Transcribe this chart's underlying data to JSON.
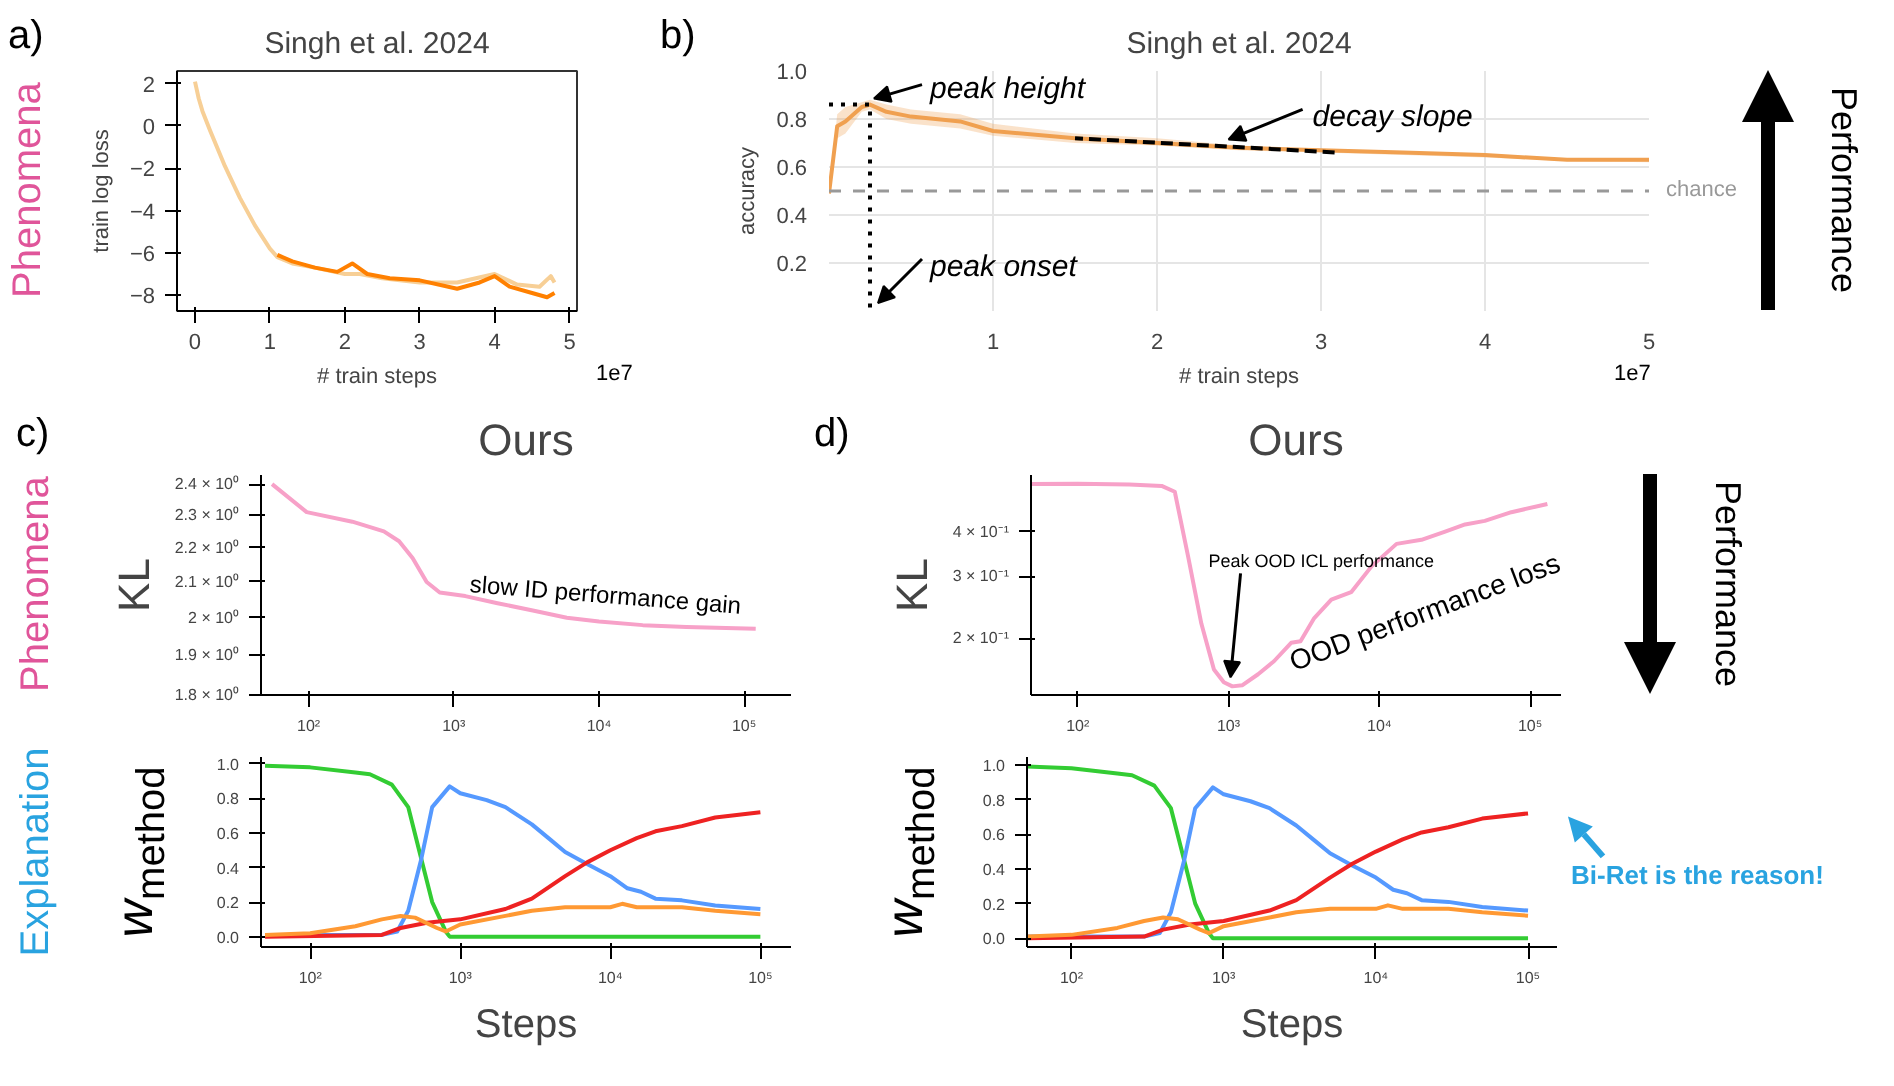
{
  "chart_data": [
    {
      "type": "line",
      "title": "Singh et al. 2024",
      "xlabel": "# train steps",
      "ylabel": "train log loss",
      "xlim": [
        -0.24,
        5.1
      ],
      "ylim": [
        -8.75,
        2.6
      ],
      "xticks": [
        0,
        1,
        2,
        3,
        4,
        5
      ],
      "yticks": [
        -8,
        -6,
        -4,
        -2,
        0,
        2
      ],
      "annotations": [
        "a)",
        "1e7",
        "Phenomena"
      ],
      "series": [
        {
          "color": "#f7cf96",
          "x": [
            0,
            0.05,
            0.1,
            0.2,
            0.4,
            0.6,
            0.8,
            1.0,
            1.1,
            1.3,
            1.6,
            2.0,
            2.2,
            2.5,
            3.0,
            3.5,
            4.0,
            4.3,
            4.6,
            4.75,
            4.8
          ],
          "values": [
            2.1,
            1.3,
            0.7,
            -0.2,
            -1.9,
            -3.4,
            -4.7,
            -5.8,
            -6.2,
            -6.5,
            -6.7,
            -7.0,
            -7.0,
            -7.2,
            -7.4,
            -7.4,
            -7.0,
            -7.5,
            -7.6,
            -7.1,
            -7.4
          ]
        },
        {
          "color": "#ff8000",
          "x": [
            1.1,
            1.3,
            1.6,
            1.9,
            2.1,
            2.3,
            2.6,
            3.0,
            3.5,
            3.8,
            4.0,
            4.2,
            4.5,
            4.7,
            4.8
          ],
          "values": [
            -6.1,
            -6.4,
            -6.7,
            -6.9,
            -6.5,
            -7.0,
            -7.2,
            -7.3,
            -7.7,
            -7.4,
            -7.1,
            -7.6,
            -7.9,
            -8.1,
            -7.9
          ]
        }
      ]
    },
    {
      "type": "line",
      "title": "Singh et al. 2024",
      "xlabel": "# train steps",
      "ylabel": "accuracy",
      "xlim": [
        0,
        5
      ],
      "ylim": [
        0,
        1.0
      ],
      "xticks": [
        1,
        2,
        3,
        4,
        5
      ],
      "yticks": [
        0.2,
        0.4,
        0.6,
        0.8,
        {
          "value": 1.0,
          "label": "1.0"
        }
      ],
      "grid": true,
      "ref_lines": [
        {
          "axis": "y",
          "value": 0.5,
          "label": "chance",
          "color": "#999999",
          "line_style": "dashed"
        }
      ],
      "annotations": [
        "b)",
        "1e7",
        {
          "text": "peak height",
          "x": 0.25,
          "y": 0.86
        },
        {
          "text": "peak onset",
          "x": 0.25,
          "y": 0
        },
        {
          "text": "decay slope",
          "x": 2.4,
          "y": 0.69
        },
        "Performance"
      ],
      "series": [
        {
          "color": "#f0a050",
          "x": [
            0,
            0.05,
            0.1,
            0.2,
            0.25,
            0.35,
            0.5,
            0.8,
            1.0,
            1.5,
            2.0,
            2.5,
            3.0,
            3.5,
            4.0,
            4.5,
            5.0
          ],
          "values": [
            0.49,
            0.77,
            0.79,
            0.85,
            0.86,
            0.83,
            0.81,
            0.79,
            0.75,
            0.72,
            0.7,
            0.68,
            0.67,
            0.66,
            0.65,
            0.63,
            0.63
          ],
          "lower": [
            0.49,
            0.72,
            0.74,
            0.83,
            0.84,
            0.8,
            0.78,
            0.76,
            0.73,
            0.7,
            0.69,
            0.67,
            0.66,
            0.65,
            0.64,
            0.625,
            0.62
          ],
          "upper": [
            0.49,
            0.82,
            0.85,
            0.87,
            0.88,
            0.86,
            0.84,
            0.82,
            0.78,
            0.74,
            0.72,
            0.69,
            0.67,
            0.66,
            0.65,
            0.635,
            0.63
          ]
        },
        {
          "color": "#000000",
          "line_style": "dotted",
          "x": [
            0,
            0.25,
            0.25
          ],
          "values": [
            0.86,
            0.86,
            0
          ]
        },
        {
          "color": "#000000",
          "line_style": "dashed",
          "x": [
            1.5,
            3.1
          ],
          "values": [
            0.72,
            0.66
          ]
        }
      ]
    },
    {
      "type": "line",
      "title": "Ours",
      "ylabel": "KL",
      "log": "xy",
      "xlim": [
        47,
        210000
      ],
      "ylim": [
        1.8,
        2.43
      ],
      "xticks": [
        {
          "value": 100,
          "label": "10²"
        },
        {
          "value": 1000,
          "label": "10³"
        },
        {
          "value": 10000,
          "label": "10⁴"
        },
        {
          "value": 100000,
          "label": "10⁵"
        }
      ],
      "yticks": [
        {
          "value": 1.8,
          "label": "1.8 × 10⁰"
        },
        {
          "value": 1.9,
          "label": "1.9 × 10⁰"
        },
        {
          "value": 2,
          "label": "2 × 10⁰"
        },
        {
          "value": 2.1,
          "label": "2.1 × 10⁰"
        },
        {
          "value": 2.2,
          "label": "2.2 × 10⁰"
        },
        {
          "value": 2.3,
          "label": "2.3 × 10⁰"
        },
        {
          "value": 2.4,
          "label": "2.4 × 10⁰"
        }
      ],
      "annotations": [
        "c)",
        "Phenomena",
        {
          "text": "slow ID performance gain",
          "x": 1000,
          "y": 2.06
        }
      ],
      "series": [
        {
          "color": "#f7a1c8",
          "x": [
            56,
            97,
            200,
            330,
            420,
            520,
            650,
            800,
            1200,
            2000,
            3500,
            6000,
            10000,
            20000,
            40000,
            120000
          ],
          "values": [
            2.4,
            2.31,
            2.28,
            2.25,
            2.22,
            2.17,
            2.1,
            2.07,
            2.06,
            2.04,
            2.02,
            2.0,
            1.99,
            1.98,
            1.975,
            1.97
          ]
        }
      ]
    },
    {
      "type": "line",
      "title": "Ours",
      "ylabel": "KL",
      "log": "xy",
      "xlim": [
        49,
        160000
      ],
      "ylim": [
        0.138,
        0.58
      ],
      "xticks": [
        {
          "value": 100,
          "label": "10²"
        },
        {
          "value": 1000,
          "label": "10³"
        },
        {
          "value": 10000,
          "label": "10⁴"
        },
        {
          "value": 100000,
          "label": "10⁵"
        }
      ],
      "yticks": [
        {
          "value": 0.2,
          "label": "2 × 10⁻¹"
        },
        {
          "value": 0.3,
          "label": "3 × 10⁻¹"
        },
        {
          "value": 0.4,
          "label": "4 × 10⁻¹"
        }
      ],
      "annotations": [
        "d)",
        {
          "text": "Peak OOD ICL performance",
          "x": 1000,
          "y": 0.147
        },
        {
          "text": "OOD performance loss",
          "x": 3000,
          "y": 0.19
        },
        "Performance"
      ],
      "series": [
        {
          "color": "#f7a1c8",
          "x": [
            49,
            100,
            220,
            360,
            440,
            540,
            660,
            800,
            930,
            1060,
            1230,
            1570,
            2000,
            2600,
            3000,
            3700,
            4800,
            6500,
            8900,
            13000,
            19000,
            27000,
            37000,
            50000,
            75000,
            130000
          ],
          "values": [
            0.547,
            0.548,
            0.545,
            0.54,
            0.52,
            0.34,
            0.22,
            0.163,
            0.15,
            0.146,
            0.147,
            0.158,
            0.172,
            0.194,
            0.196,
            0.228,
            0.257,
            0.27,
            0.32,
            0.37,
            0.38,
            0.4,
            0.42,
            0.43,
            0.455,
            0.48
          ]
        }
      ]
    },
    {
      "type": "line",
      "xlabel": "Steps",
      "ylabel": "w$_{method}$",
      "log": "x",
      "xlim": [
        47,
        160000
      ],
      "ylim": [
        -0.06,
        1.04
      ],
      "xticks": [
        {
          "value": 100,
          "label": "10²"
        },
        {
          "value": 1000,
          "label": "10³"
        },
        {
          "value": 10000,
          "label": "10⁴"
        },
        {
          "value": 100000,
          "label": "10⁵"
        }
      ],
      "yticks": [
        {
          "value": 0,
          "label": "0.0"
        },
        0.2,
        0.4,
        0.6,
        0.8,
        {
          "value": 1,
          "label": "1.0"
        }
      ],
      "annotations": [
        "Explanation"
      ],
      "series": [
        {
          "color": "#33cc33",
          "x": [
            50,
            100,
            200,
            250,
            350,
            450,
            550,
            650,
            800,
            850,
            100000
          ],
          "values": [
            0.99,
            0.98,
            0.95,
            0.94,
            0.88,
            0.75,
            0.45,
            0.2,
            0.03,
            0.0,
            0.0
          ]
        },
        {
          "color": "#5599ff",
          "x": [
            50,
            300,
            380,
            450,
            550,
            650,
            850,
            1000,
            1500,
            2000,
            3000,
            4000,
            5000,
            7000,
            10000,
            13000,
            16000,
            20000,
            30000,
            50000,
            100000
          ],
          "values": [
            0.01,
            0.01,
            0.03,
            0.15,
            0.45,
            0.75,
            0.87,
            0.83,
            0.79,
            0.75,
            0.65,
            0.56,
            0.49,
            0.42,
            0.35,
            0.28,
            0.26,
            0.22,
            0.21,
            0.18,
            0.16
          ]
        },
        {
          "color": "#ee2222",
          "x": [
            50,
            300,
            400,
            600,
            1000,
            2000,
            3000,
            5000,
            7000,
            10000,
            15000,
            20000,
            30000,
            50000,
            100000
          ],
          "values": [
            0.0,
            0.01,
            0.05,
            0.08,
            0.1,
            0.16,
            0.22,
            0.35,
            0.43,
            0.5,
            0.57,
            0.61,
            0.64,
            0.69,
            0.72
          ]
        },
        {
          "color": "#ff9933",
          "x": [
            50,
            100,
            200,
            300,
            400,
            500,
            700,
            800,
            1000,
            2000,
            3000,
            5000,
            10000,
            12000,
            15000,
            30000,
            50000,
            100000
          ],
          "values": [
            0.01,
            0.02,
            0.06,
            0.1,
            0.12,
            0.11,
            0.05,
            0.03,
            0.07,
            0.12,
            0.15,
            0.17,
            0.17,
            0.19,
            0.17,
            0.17,
            0.15,
            0.13
          ]
        }
      ]
    },
    {
      "type": "line",
      "xlabel": "Steps",
      "ylabel": "w$_{method}$",
      "log": "x",
      "xlim": [
        51,
        155000
      ],
      "ylim": [
        -0.05,
        1.045
      ],
      "xticks": [
        {
          "value": 100,
          "label": "10²"
        },
        {
          "value": 1000,
          "label": "10³"
        },
        {
          "value": 10000,
          "label": "10⁴"
        },
        {
          "value": 100000,
          "label": "10⁵"
        }
      ],
      "yticks": [
        {
          "value": 0,
          "label": "0.0"
        },
        0.2,
        0.4,
        0.6,
        0.8,
        {
          "value": 1,
          "label": "1.0"
        }
      ],
      "annotations": [
        {
          "text": "Bi-Ret is the reason!",
          "x": 100000,
          "y": 0.72
        }
      ],
      "series": [
        {
          "color": "#33cc33",
          "x": [
            51,
            100,
            200,
            250,
            350,
            450,
            550,
            650,
            800,
            850,
            100000
          ],
          "values": [
            0.99,
            0.98,
            0.95,
            0.94,
            0.88,
            0.75,
            0.45,
            0.2,
            0.03,
            0.0,
            0.0
          ]
        },
        {
          "color": "#5599ff",
          "x": [
            51,
            300,
            380,
            450,
            550,
            650,
            850,
            1000,
            1500,
            2000,
            3000,
            4000,
            5000,
            7000,
            10000,
            13000,
            16000,
            20000,
            30000,
            50000,
            100000
          ],
          "values": [
            0.01,
            0.01,
            0.03,
            0.15,
            0.45,
            0.75,
            0.87,
            0.83,
            0.79,
            0.75,
            0.65,
            0.56,
            0.49,
            0.42,
            0.35,
            0.28,
            0.26,
            0.22,
            0.21,
            0.18,
            0.16
          ]
        },
        {
          "color": "#ee2222",
          "x": [
            51,
            300,
            400,
            600,
            1000,
            2000,
            3000,
            5000,
            7000,
            10000,
            15000,
            20000,
            30000,
            50000,
            100000
          ],
          "values": [
            0.0,
            0.01,
            0.05,
            0.08,
            0.1,
            0.16,
            0.22,
            0.35,
            0.43,
            0.5,
            0.57,
            0.61,
            0.64,
            0.69,
            0.72
          ]
        },
        {
          "color": "#ff9933",
          "x": [
            51,
            100,
            200,
            300,
            400,
            500,
            700,
            800,
            1000,
            2000,
            3000,
            5000,
            10000,
            12000,
            15000,
            30000,
            50000,
            100000
          ],
          "values": [
            0.01,
            0.02,
            0.06,
            0.1,
            0.12,
            0.11,
            0.05,
            0.03,
            0.07,
            0.12,
            0.15,
            0.17,
            0.17,
            0.19,
            0.17,
            0.17,
            0.15,
            0.13
          ]
        }
      ]
    }
  ]
}
